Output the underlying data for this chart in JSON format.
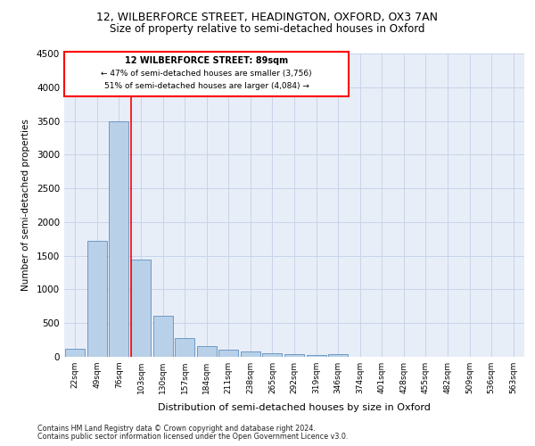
{
  "title1": "12, WILBERFORCE STREET, HEADINGTON, OXFORD, OX3 7AN",
  "title2": "Size of property relative to semi-detached houses in Oxford",
  "xlabel": "Distribution of semi-detached houses by size in Oxford",
  "ylabel": "Number of semi-detached properties",
  "categories": [
    "22sqm",
    "49sqm",
    "76sqm",
    "103sqm",
    "130sqm",
    "157sqm",
    "184sqm",
    "211sqm",
    "238sqm",
    "265sqm",
    "292sqm",
    "319sqm",
    "346sqm",
    "374sqm",
    "401sqm",
    "428sqm",
    "455sqm",
    "482sqm",
    "509sqm",
    "536sqm",
    "563sqm"
  ],
  "values": [
    120,
    1720,
    3500,
    1440,
    610,
    280,
    160,
    100,
    80,
    55,
    45,
    30,
    40,
    0,
    0,
    0,
    0,
    0,
    0,
    0,
    0
  ],
  "bar_color": "#b8d0e8",
  "bar_edge_color": "#6090c0",
  "property_label": "12 WILBERFORCE STREET: 89sqm",
  "pct_smaller": 47,
  "count_smaller": "3,756",
  "pct_larger": 51,
  "count_larger": "4,084",
  "red_line_bin": 3,
  "ylim": [
    0,
    4500
  ],
  "yticks": [
    0,
    500,
    1000,
    1500,
    2000,
    2500,
    3000,
    3500,
    4000,
    4500
  ],
  "grid_color": "#c8d4e8",
  "bg_color": "#e8eef8",
  "footnote1": "Contains HM Land Registry data © Crown copyright and database right 2024.",
  "footnote2": "Contains public sector information licensed under the Open Government Licence v3.0."
}
